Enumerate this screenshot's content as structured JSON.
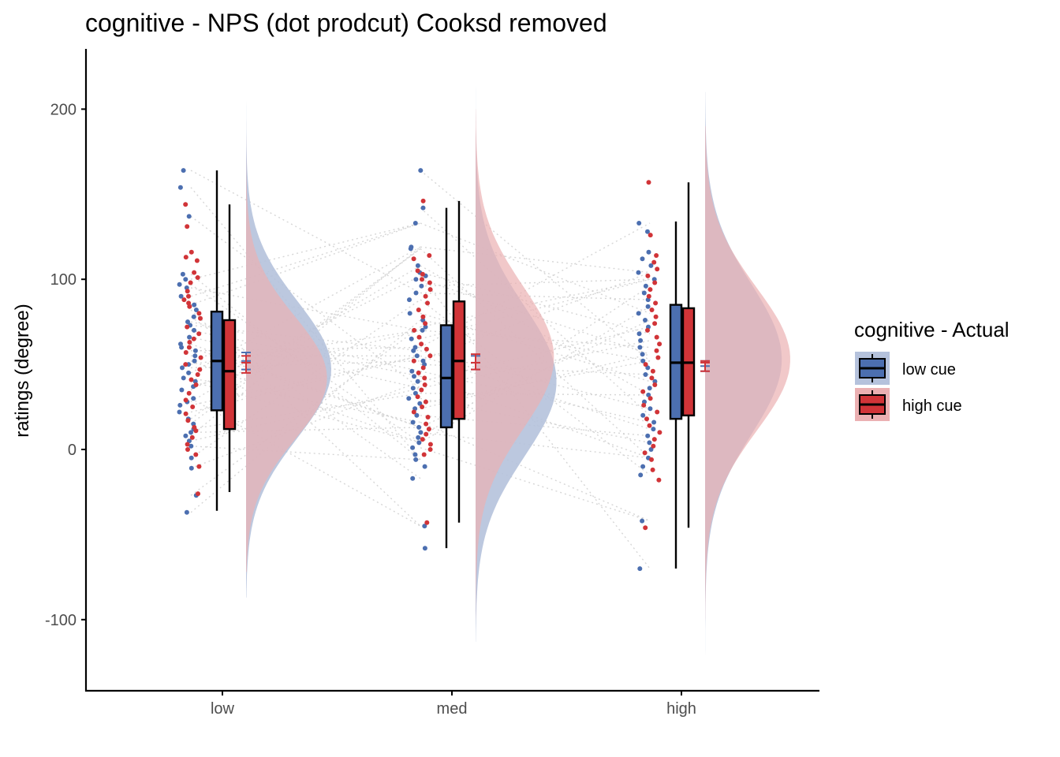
{
  "chart_data": {
    "type": "raincloud",
    "title": "cognitive  - NPS (dot prodcut) Cooksd removed",
    "xlabel": "",
    "ylabel": "ratings (degree)",
    "categories": [
      "low",
      "med",
      "high"
    ],
    "ylim": [
      -140,
      235
    ],
    "yticks": [
      -100,
      0,
      100,
      200
    ],
    "ytick_labels": [
      "-100",
      "0",
      "100",
      "200"
    ],
    "grid": false,
    "legend": {
      "title": "cognitive  - Actual",
      "position": "right",
      "entries": [
        "low cue",
        "high cue"
      ]
    },
    "series": [
      {
        "name": "low cue",
        "color": "#4c6fb0",
        "cloud_color": "#b5c2dc",
        "box": [
          {
            "min": -36,
            "q1": 23,
            "median": 52,
            "q3": 81,
            "max": 164
          },
          {
            "min": -58,
            "q1": 13,
            "median": 42,
            "q3": 73,
            "max": 142
          },
          {
            "min": -70,
            "q1": 18,
            "median": 51,
            "q3": 85,
            "max": 134
          }
        ],
        "mean_se": [
          {
            "mean": 52,
            "lo": 47,
            "hi": 57
          },
          {
            "mean": 51,
            "lo": 47,
            "hi": 55
          },
          {
            "mean": 49,
            "lo": 46,
            "hi": 52
          }
        ],
        "density": [
          {
            "mean": 47,
            "sd": 40,
            "peak": 0.01,
            "lo": -87,
            "hi": 215
          },
          {
            "mean": 40,
            "sd": 44,
            "peak": 0.0095,
            "lo": -113,
            "hi": 218
          },
          {
            "mean": 53,
            "sd": 44,
            "peak": 0.009,
            "lo": -125,
            "hi": 210
          }
        ]
      },
      {
        "name": "high cue",
        "color": "#d13438",
        "cloud_color": "#ebb0b2",
        "box": [
          {
            "min": -25,
            "q1": 12,
            "median": 46,
            "q3": 76,
            "max": 144
          },
          {
            "min": -43,
            "q1": 18,
            "median": 52,
            "q3": 87,
            "max": 146
          },
          {
            "min": -46,
            "q1": 20,
            "median": 51,
            "q3": 83,
            "max": 157
          }
        ],
        "mean_se": [
          {
            "mean": 51,
            "lo": 45,
            "hi": 55
          },
          {
            "mean": 51,
            "lo": 47,
            "hi": 56
          },
          {
            "mean": 51,
            "lo": 46,
            "hi": 52
          }
        ],
        "density": [
          {
            "mean": 42,
            "sd": 36,
            "peak": 0.0095,
            "lo": -72,
            "hi": 200
          },
          {
            "mean": 54,
            "sd": 42,
            "peak": 0.0092,
            "lo": -100,
            "hi": 200
          },
          {
            "mean": 53,
            "sd": 42,
            "peak": 0.01,
            "lo": -100,
            "hi": 190
          }
        ]
      }
    ],
    "points": {
      "low": {
        "low cue": [
          164,
          154,
          137,
          103,
          100,
          97,
          95,
          90,
          85,
          82,
          78,
          75,
          73,
          70,
          66,
          62,
          60,
          58,
          55,
          52,
          50,
          48,
          45,
          42,
          40,
          37,
          35,
          30,
          28,
          26,
          22,
          18,
          15,
          12,
          10,
          8,
          5,
          2,
          -5,
          -11,
          -27,
          -37
        ],
        "high cue": [
          144,
          131,
          116,
          113,
          111,
          104,
          101,
          98,
          93,
          90,
          88,
          86,
          84,
          80,
          77,
          72,
          68,
          65,
          63,
          60,
          57,
          54,
          50,
          47,
          44,
          41,
          38,
          33,
          29,
          25,
          21,
          17,
          13,
          11,
          7,
          3,
          0,
          -3,
          -10,
          -26
        ]
      },
      "med": {
        "low cue": [
          164,
          142,
          133,
          119,
          118,
          108,
          104,
          102,
          100,
          96,
          92,
          88,
          80,
          76,
          72,
          70,
          65,
          60,
          58,
          55,
          52,
          50,
          46,
          43,
          40,
          36,
          33,
          30,
          27,
          24,
          20,
          16,
          13,
          10,
          7,
          4,
          1,
          -3,
          -6,
          -10,
          -17,
          -45,
          -58
        ],
        "high cue": [
          146,
          114,
          112,
          105,
          103,
          100,
          98,
          94,
          90,
          86,
          82,
          78,
          74,
          70,
          66,
          62,
          59,
          55,
          52,
          48,
          45,
          42,
          38,
          35,
          31,
          28,
          25,
          22,
          19,
          15,
          12,
          9,
          6,
          3,
          0,
          -3,
          -43
        ]
      },
      "high": {
        "low cue": [
          133,
          128,
          116,
          112,
          108,
          104,
          100,
          96,
          92,
          88,
          84,
          80,
          76,
          72,
          68,
          64,
          60,
          56,
          52,
          48,
          44,
          40,
          36,
          32,
          28,
          24,
          20,
          16,
          12,
          8,
          4,
          0,
          -5,
          -10,
          -15,
          -42,
          -70
        ],
        "high cue": [
          157,
          126,
          114,
          110,
          106,
          102,
          98,
          94,
          90,
          86,
          82,
          78,
          74,
          70,
          66,
          62,
          58,
          54,
          50,
          46,
          42,
          38,
          34,
          30,
          26,
          22,
          18,
          14,
          10,
          6,
          2,
          -2,
          -6,
          -12,
          -18,
          -46
        ]
      }
    }
  }
}
